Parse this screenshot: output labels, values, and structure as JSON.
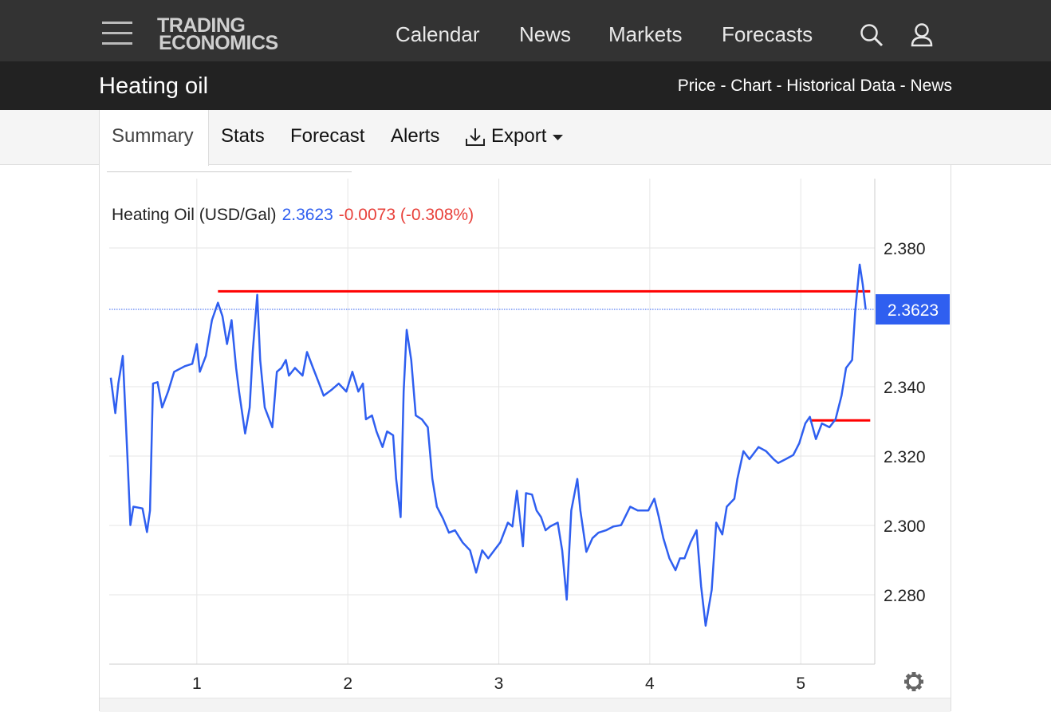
{
  "header": {
    "logo": [
      "TRADING",
      "ECONOMICS"
    ],
    "nav": [
      "Calendar",
      "News",
      "Markets",
      "Forecasts"
    ]
  },
  "page_title": "Heating oil",
  "breadcrumb": "Price - Chart - Historical Data - News",
  "tabs": [
    "Summary",
    "Stats",
    "Forecast",
    "Alerts",
    "Export"
  ],
  "chart_data": {
    "type": "line",
    "series": [
      {
        "name": "Heating Oil (USD/Gal)",
        "color": "#2f5ff0",
        "x": [
          0.43,
          0.46,
          0.48,
          0.51,
          0.54,
          0.56,
          0.58,
          0.64,
          0.67,
          0.69,
          0.71,
          0.74,
          0.77,
          0.81,
          0.85,
          0.92,
          0.97,
          1.0,
          1.02,
          1.06,
          1.1,
          1.14,
          1.17,
          1.2,
          1.23,
          1.26,
          1.28,
          1.32,
          1.35,
          1.37,
          1.4,
          1.42,
          1.45,
          1.5,
          1.53,
          1.56,
          1.59,
          1.61,
          1.65,
          1.7,
          1.73,
          1.77,
          1.81,
          1.84,
          1.89,
          1.94,
          1.99,
          2.03,
          2.07,
          2.1,
          2.12,
          2.16,
          2.19,
          2.23,
          2.26,
          2.3,
          2.32,
          2.35,
          2.37,
          2.39,
          2.42,
          2.45,
          2.49,
          2.53,
          2.56,
          2.59,
          2.63,
          2.67,
          2.71,
          2.76,
          2.81,
          2.85,
          2.89,
          2.93,
          2.97,
          3.01,
          3.06,
          3.09,
          3.12,
          3.16,
          3.18,
          3.22,
          3.25,
          3.28,
          3.31,
          3.34,
          3.39,
          3.42,
          3.45,
          3.48,
          3.52,
          3.54,
          3.58,
          3.62,
          3.66,
          3.71,
          3.76,
          3.81,
          3.87,
          3.92,
          3.99,
          4.03,
          4.06,
          4.09,
          4.13,
          4.17,
          4.2,
          4.23,
          4.27,
          4.31,
          4.34,
          4.37,
          4.41,
          4.44,
          4.48,
          4.51,
          4.56,
          4.58,
          4.62,
          4.66,
          4.72,
          4.77,
          4.82,
          4.85,
          4.9,
          4.95,
          4.99,
          5.03,
          5.06,
          5.1,
          5.14,
          5.19,
          5.23,
          5.27,
          5.3,
          5.34,
          5.36,
          5.39,
          5.41,
          5.43
        ],
        "values": [
          2.3426,
          2.3324,
          2.3409,
          2.3489,
          2.3203,
          2.3001,
          2.3054,
          2.3049,
          2.2981,
          2.3043,
          2.3409,
          2.3413,
          2.334,
          2.3386,
          2.3443,
          2.3459,
          2.3466,
          2.3523,
          2.3443,
          2.3489,
          2.3592,
          2.3642,
          2.3603,
          2.3523,
          2.3592,
          2.3454,
          2.3386,
          2.3265,
          2.334,
          2.35,
          2.3665,
          2.3477,
          2.334,
          2.3283,
          2.3443,
          2.3454,
          2.3477,
          2.3432,
          2.3454,
          2.3432,
          2.35,
          2.3454,
          2.3409,
          2.3374,
          2.339,
          2.3409,
          2.3386,
          2.3443,
          2.3386,
          2.3409,
          2.3306,
          2.3317,
          2.3271,
          2.3226,
          2.3271,
          2.326,
          2.3134,
          2.3024,
          2.3386,
          2.3564,
          2.3477,
          2.3317,
          2.3306,
          2.3283,
          2.3134,
          2.3054,
          2.302,
          2.2979,
          2.2986,
          2.2951,
          2.2928,
          2.2864,
          2.2928,
          2.2905,
          2.2928,
          2.2951,
          2.3008,
          2.2997,
          2.31,
          2.294,
          2.3093,
          2.3089,
          2.3043,
          2.3024,
          2.2986,
          2.2997,
          2.3008,
          2.2928,
          2.2786,
          2.3043,
          2.3134,
          2.3043,
          2.2924,
          2.2963,
          2.2979,
          2.2986,
          2.2997,
          2.3001,
          2.3054,
          2.3043,
          2.3043,
          2.3077,
          2.3024,
          2.2963,
          2.2905,
          2.2871,
          2.2905,
          2.2905,
          2.2951,
          2.2986,
          2.2825,
          2.2711,
          2.2814,
          2.3008,
          2.2974,
          2.3054,
          2.3077,
          2.3134,
          2.3214,
          2.3191,
          2.3226,
          2.3214,
          2.3191,
          2.318,
          2.3191,
          2.3203,
          2.3237,
          2.3294,
          2.3313,
          2.3249,
          2.3294,
          2.3283,
          2.3306,
          2.3374,
          2.3454,
          2.3477,
          2.3615,
          2.3752,
          2.3695,
          2.3623
        ]
      }
    ],
    "last_value": 2.3623,
    "change_label": "-0.0073 (-0.308%)",
    "change_color": "#e8403a",
    "reference_lines": [
      {
        "value": 2.3675,
        "x_range": [
          1.14,
          5.46
        ],
        "color": "#ff0000"
      },
      {
        "value": 2.3303,
        "x_range": [
          5.06,
          5.46
        ],
        "color": "#ff0000"
      }
    ],
    "xlim": [
      0.42,
      5.49
    ],
    "ylim": [
      2.26,
      2.4
    ],
    "xticks": [
      1,
      2,
      3,
      4,
      5
    ],
    "yticks": [
      {
        "value": 2.28,
        "label": "2.280"
      },
      {
        "value": 2.3,
        "label": "2.300"
      },
      {
        "value": 2.32,
        "label": "2.320"
      },
      {
        "value": 2.34,
        "label": "2.340"
      },
      {
        "value": 2.38,
        "label": "2.380"
      }
    ],
    "grid": true
  }
}
